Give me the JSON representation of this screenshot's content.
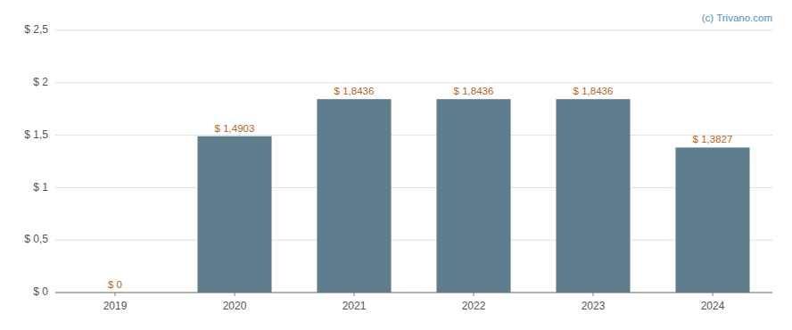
{
  "chart_data": {
    "type": "bar",
    "categories": [
      "2019",
      "2020",
      "2021",
      "2022",
      "2023",
      "2024"
    ],
    "values": [
      0.0,
      1.4903,
      1.8436,
      1.8436,
      1.8436,
      1.3827
    ],
    "value_labels": [
      "$ 0",
      "$ 1,4903",
      "$ 1,8436",
      "$ 1,8436",
      "$ 1,8436",
      "$ 1,3827"
    ],
    "data_labels": true,
    "color": "#5f7d8c",
    "ylim": [
      0,
      2.5
    ],
    "yticks": [
      {
        "value": 0,
        "label": "$ 0"
      },
      {
        "value": 0.5,
        "label": "$ 0,5"
      },
      {
        "value": 1.0,
        "label": "$ 1"
      },
      {
        "value": 1.5,
        "label": "$ 1,5"
      },
      {
        "value": 2.0,
        "label": "$ 2"
      },
      {
        "value": 2.5,
        "label": "$ 2,5"
      }
    ],
    "grid": true,
    "annotations": [
      "(c) Trivano.com"
    ]
  }
}
